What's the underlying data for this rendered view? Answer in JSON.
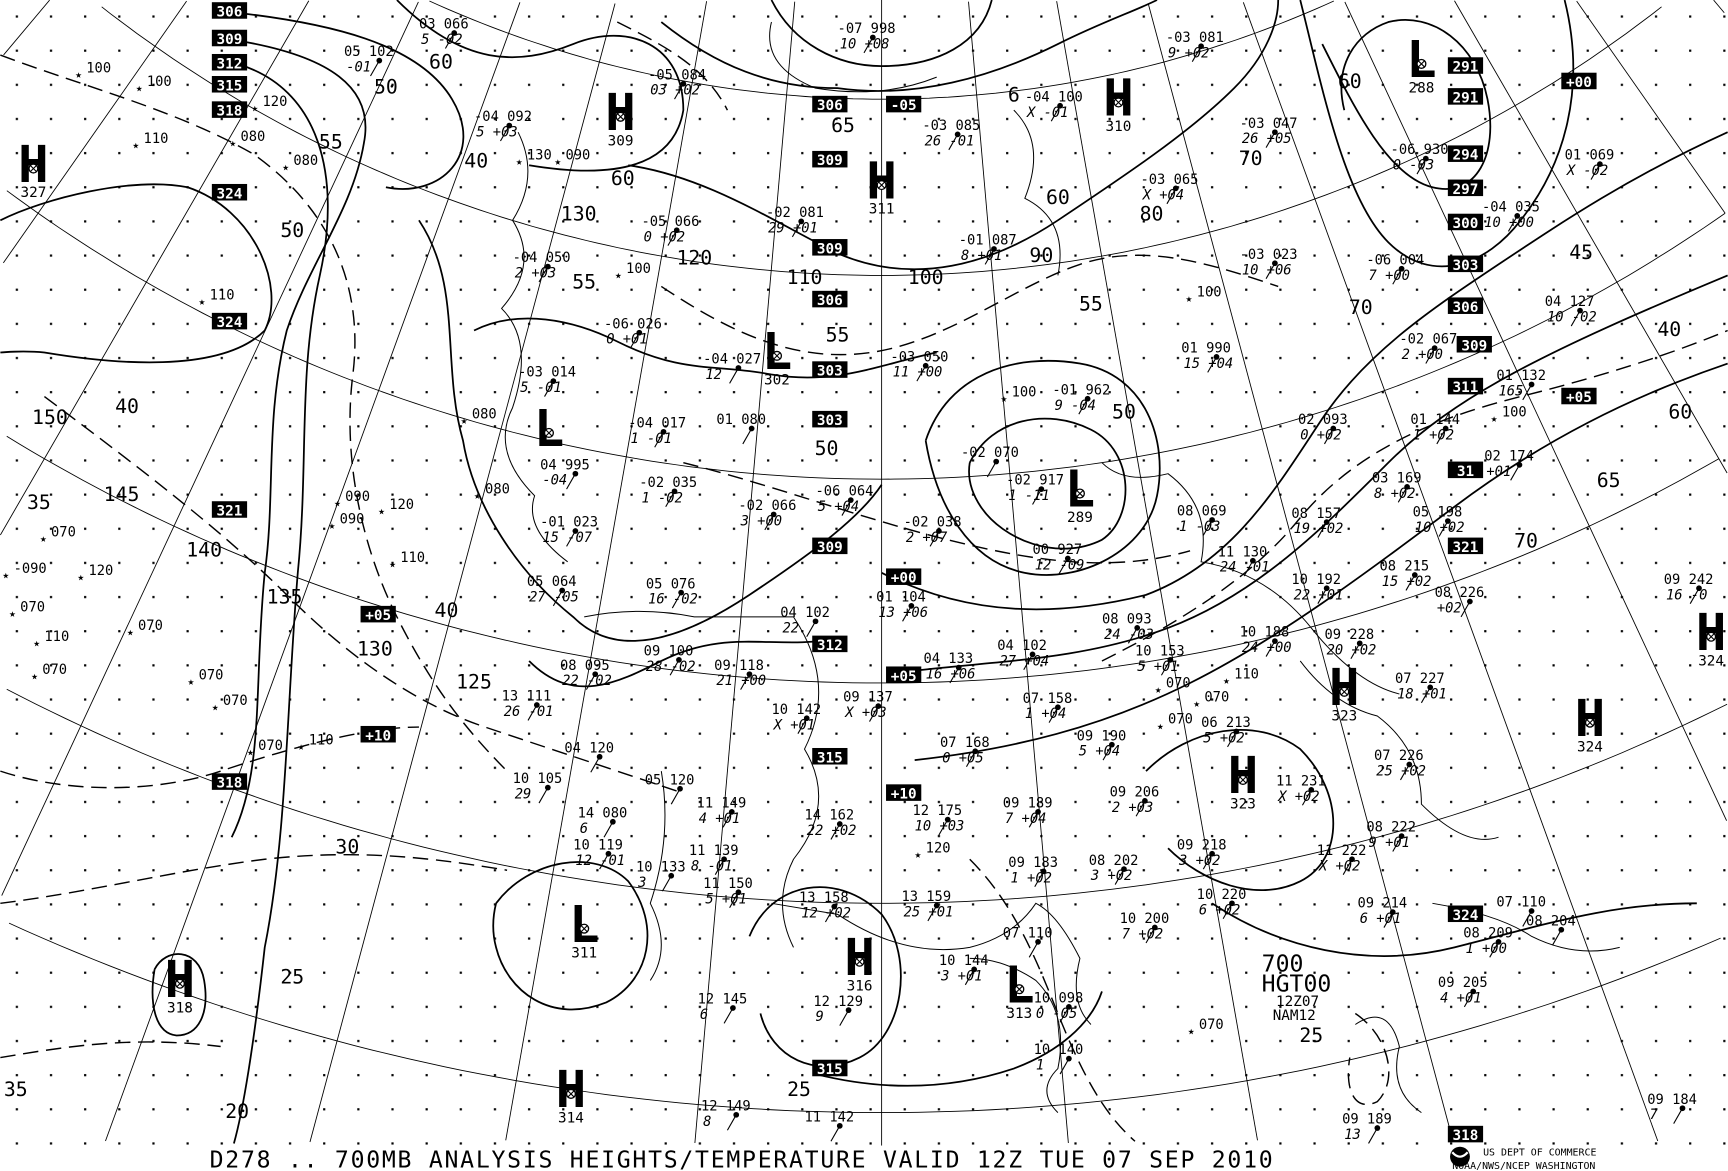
{
  "caption": "D278 .. 700MB   ANALYSIS  HEIGHTS/TEMPERATURE VALID 12Z TUE 07 SEP 2010",
  "product_label": {
    "line1": "700",
    "line2": "HGT00",
    "line3": "12Z07",
    "line4": "NAM12"
  },
  "agency": {
    "line1": "US DEPT OF COMMERCE",
    "line2": "NOAA/NWS/NCEP WASHINGTON",
    "logo": "noaa-logo"
  },
  "colors": {
    "ink": "#000000",
    "background": "#ffffff"
  },
  "centers": [
    {
      "type": "H",
      "value": "327"
    },
    {
      "type": "H",
      "value": "309"
    },
    {
      "type": "H",
      "value": "311"
    },
    {
      "type": "H",
      "value": "310"
    },
    {
      "type": "L",
      "value": "288"
    },
    {
      "type": "L",
      "value": ""
    },
    {
      "type": "L",
      "value": "302"
    },
    {
      "type": "L",
      "value": "289"
    },
    {
      "type": "H",
      "value": "324"
    },
    {
      "type": "H",
      "value": "324"
    },
    {
      "type": "H",
      "value": "323"
    },
    {
      "type": "H",
      "value": "323"
    },
    {
      "type": "L",
      "value": "311"
    },
    {
      "type": "H",
      "value": "318"
    },
    {
      "type": "H",
      "value": "316"
    },
    {
      "type": "L",
      "value": "313"
    },
    {
      "type": "H",
      "value": "314"
    }
  ],
  "boxed_labels": [
    "306",
    "309",
    "312",
    "315",
    "318",
    "324",
    "324",
    "321",
    "+05",
    "+10",
    "318",
    "306",
    "-05",
    "309",
    "309",
    "306",
    "303",
    "303",
    "309",
    "+00",
    "312",
    "+05",
    "315",
    "+10",
    "315",
    "291",
    "291",
    "+00",
    "294",
    "297",
    "300",
    "303",
    "306",
    "309",
    "311",
    "31",
    "321",
    "+05",
    "324",
    "318"
  ],
  "contour_labels": [
    "60",
    "50",
    "55",
    "50",
    "40",
    "60",
    "130",
    "55",
    "120",
    "110",
    "100",
    "90",
    "80",
    "70",
    "60",
    "55",
    "50",
    "55",
    "50",
    "65",
    "6",
    "150",
    "40",
    "145",
    "140",
    "135",
    "130",
    "125",
    "40",
    "35",
    "30",
    "25",
    "20",
    "35",
    "25",
    "25",
    "45",
    "40",
    "60",
    "65",
    "70",
    "60",
    "70"
  ],
  "stations": [
    {
      "top": "03 066",
      "bottom": "5 -02"
    },
    {
      "top": "05 102",
      "bottom": "-01"
    },
    {
      "top": "-05 084",
      "bottom": "03 +02"
    },
    {
      "top": "-04 092",
      "bottom": "5 +03"
    },
    {
      "top": "-07 998",
      "bottom": "10 +08"
    },
    {
      "top": "-04 100",
      "bottom": "X -01"
    },
    {
      "top": "-03 085",
      "bottom": "26 -01"
    },
    {
      "top": "-03 081",
      "bottom": "9 +02"
    },
    {
      "top": "-03 047",
      "bottom": "26 +05"
    },
    {
      "top": "-06 930",
      "bottom": "0 -03"
    },
    {
      "top": "01 069",
      "bottom": "X -02"
    },
    {
      "top": "-05 066",
      "bottom": "0 +02"
    },
    {
      "top": "-02 081",
      "bottom": "29 +01"
    },
    {
      "top": "-01 087",
      "bottom": "8 +01"
    },
    {
      "top": "-03 065",
      "bottom": "X +04"
    },
    {
      "top": "-04 035",
      "bottom": "10 +00"
    },
    {
      "top": "-04 050",
      "bottom": "2 +03"
    },
    {
      "top": "-06 004",
      "bottom": "7 +00"
    },
    {
      "top": "-03 023",
      "bottom": "10 +06"
    },
    {
      "top": "04 127",
      "bottom": "10 -02"
    },
    {
      "top": "-06 026",
      "bottom": "0 +01"
    },
    {
      "top": "-04 027",
      "bottom": "12"
    },
    {
      "top": "-03 050",
      "bottom": "11 +00"
    },
    {
      "top": "01 990",
      "bottom": "15 +04"
    },
    {
      "top": "-02 067",
      "bottom": "2 +00"
    },
    {
      "top": "-03 014",
      "bottom": "5 -01"
    },
    {
      "top": "-01 962",
      "bottom": "9 -04"
    },
    {
      "top": "01 132",
      "bottom": "165"
    },
    {
      "top": "-04 017",
      "bottom": "1 -01"
    },
    {
      "top": "01 080",
      "bottom": ""
    },
    {
      "top": "-02 070",
      "bottom": ""
    },
    {
      "top": "-02 917",
      "bottom": "1 -11"
    },
    {
      "top": "02 093",
      "bottom": "0 +02"
    },
    {
      "top": "01 144",
      "bottom": "1 +02"
    },
    {
      "top": "-02 035",
      "bottom": "1 -02"
    },
    {
      "top": "04 995",
      "bottom": "-04"
    },
    {
      "top": "-02 066",
      "bottom": "3 +00"
    },
    {
      "top": "-06 064",
      "bottom": "5 +04"
    },
    {
      "top": "-02 038",
      "bottom": "2 +07"
    },
    {
      "top": "03 169",
      "bottom": "8 +02"
    },
    {
      "top": "02 174",
      "bottom": "+01"
    },
    {
      "top": "-01 023",
      "bottom": "15 -07"
    },
    {
      "top": "08 069",
      "bottom": "1 -03"
    },
    {
      "top": "08 157",
      "bottom": "19 +02"
    },
    {
      "top": "05 198",
      "bottom": "10 +02"
    },
    {
      "top": "00 927",
      "bottom": "12 -09"
    },
    {
      "top": "11 130",
      "bottom": "24 -01"
    },
    {
      "top": "05 064",
      "bottom": "27 -05"
    },
    {
      "top": "05 076",
      "bottom": "16 -02"
    },
    {
      "top": "01 104",
      "bottom": "13 +06"
    },
    {
      "top": "10 192",
      "bottom": "22 +01"
    },
    {
      "top": "08 215",
      "bottom": "15 +02"
    },
    {
      "top": "08 226",
      "bottom": "+02"
    },
    {
      "top": "09 242",
      "bottom": "16 -0"
    },
    {
      "top": "04 102",
      "bottom": "22"
    },
    {
      "top": "08 093",
      "bottom": "24 -03"
    },
    {
      "top": "10 188",
      "bottom": "24 +00"
    },
    {
      "top": "09 100",
      "bottom": "28 -02"
    },
    {
      "top": "08 095",
      "bottom": "22 -02"
    },
    {
      "top": "09 118",
      "bottom": "21 +00"
    },
    {
      "top": "04 133",
      "bottom": "16 +06"
    },
    {
      "top": "04 102",
      "bottom": "27 +04"
    },
    {
      "top": "10 153",
      "bottom": "5 +01"
    },
    {
      "top": "09 228",
      "bottom": "20 +02"
    },
    {
      "top": "07 227",
      "bottom": "18 +01"
    },
    {
      "top": "13 111",
      "bottom": "26 -01"
    },
    {
      "top": "10 142",
      "bottom": "X +01"
    },
    {
      "top": "09 137",
      "bottom": "X +03"
    },
    {
      "top": "07 158",
      "bottom": "1 +04"
    },
    {
      "top": "06 213",
      "bottom": "5 +02"
    },
    {
      "top": "04 120",
      "bottom": ""
    },
    {
      "top": "07 168",
      "bottom": "0 +05"
    },
    {
      "top": "09 190",
      "bottom": "5 +04"
    },
    {
      "top": "07 226",
      "bottom": "25 +02"
    },
    {
      "top": "10 105",
      "bottom": "29"
    },
    {
      "top": "05 120",
      "bottom": ""
    },
    {
      "top": "11 149",
      "bottom": "4 +01"
    },
    {
      "top": "14 162",
      "bottom": "22 +02"
    },
    {
      "top": "12 175",
      "bottom": "10 +03"
    },
    {
      "top": "09 189",
      "bottom": "7 +04"
    },
    {
      "top": "09 206",
      "bottom": "2 +03"
    },
    {
      "top": "11 231",
      "bottom": "X +02"
    },
    {
      "top": "14 080",
      "bottom": "6"
    },
    {
      "top": "10 119",
      "bottom": "12 -01"
    },
    {
      "top": "11 139",
      "bottom": "8 -01"
    },
    {
      "top": "09 183",
      "bottom": "1 +02"
    },
    {
      "top": "08 202",
      "bottom": "3 +02"
    },
    {
      "top": "09 218",
      "bottom": "3 +02"
    },
    {
      "top": "08 222",
      "bottom": "9 +01"
    },
    {
      "top": "11 222",
      "bottom": "X +02"
    },
    {
      "top": "10 133",
      "bottom": "3"
    },
    {
      "top": "11 150",
      "bottom": "5 +01"
    },
    {
      "top": "13 158",
      "bottom": "12 +02"
    },
    {
      "top": "13 159",
      "bottom": "25 +01"
    },
    {
      "top": "10 220",
      "bottom": "6 +02"
    },
    {
      "top": "09 214",
      "bottom": "6 +01"
    },
    {
      "top": "07 110",
      "bottom": ""
    },
    {
      "top": "08 204",
      "bottom": ""
    },
    {
      "top": "10 200",
      "bottom": "7 +02"
    },
    {
      "top": "08 209",
      "bottom": "1 +00"
    },
    {
      "top": "07 110",
      "bottom": ""
    },
    {
      "top": "12 129",
      "bottom": "9"
    },
    {
      "top": "10 144",
      "bottom": "3 +01"
    },
    {
      "top": "10 098",
      "bottom": "0 -05"
    },
    {
      "top": "09 205",
      "bottom": "4 +01"
    },
    {
      "top": "12 145",
      "bottom": "6"
    },
    {
      "top": "10 140",
      "bottom": "1"
    },
    {
      "top": "12 149",
      "bottom": "8"
    },
    {
      "top": "11 142",
      "bottom": ""
    },
    {
      "top": "09 189",
      "bottom": "13"
    },
    {
      "top": "09 184",
      "bottom": "7"
    }
  ],
  "wind_only_values": [
    "100",
    "100",
    "110",
    "120",
    "080",
    "080",
    "110",
    "090",
    "130",
    "100",
    "090",
    "100",
    "080",
    "080",
    "090",
    "120",
    "110",
    "070",
    "120",
    "-090",
    "070",
    "110",
    "070",
    "070",
    "070",
    "070",
    "070",
    "110",
    "100",
    "100",
    "070",
    "070",
    "110",
    "070",
    "120",
    "070"
  ]
}
